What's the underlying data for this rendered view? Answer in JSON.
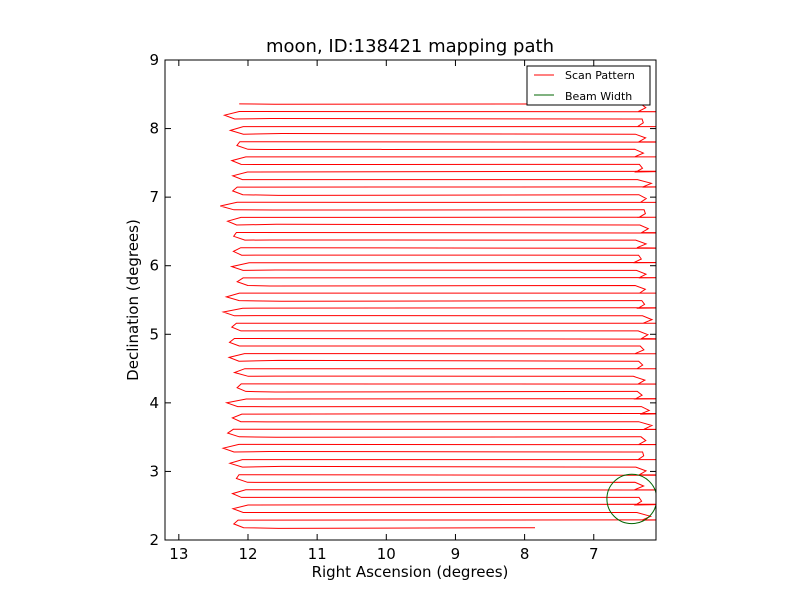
{
  "chart_data": {
    "type": "line",
    "title": "moon, ID:138421 mapping path",
    "xlabel": "Right Ascension (degrees)",
    "ylabel": "Declination (degrees)",
    "xlim": [
      13.2,
      6.1
    ],
    "ylim": [
      2,
      9
    ],
    "x_inverted": true,
    "xticks": [
      13,
      12,
      11,
      10,
      9,
      8,
      7
    ],
    "yticks": [
      2,
      3,
      4,
      5,
      6,
      7,
      8,
      9
    ],
    "grid": false,
    "legend_position": "upper right",
    "series": [
      {
        "name": "Scan Pattern",
        "color": "#ff0000",
        "pattern": "boustrophedon raster",
        "dec_start": 2.18,
        "dec_end": 8.36,
        "row_count": 57,
        "ra_left": 12.1,
        "ra_right": 6.35,
        "ra_start": 7.85
      },
      {
        "name": "Beam Width",
        "color": "#006400",
        "shape": "circle",
        "center": [
          6.45,
          2.6
        ],
        "radius": 0.36
      }
    ]
  }
}
